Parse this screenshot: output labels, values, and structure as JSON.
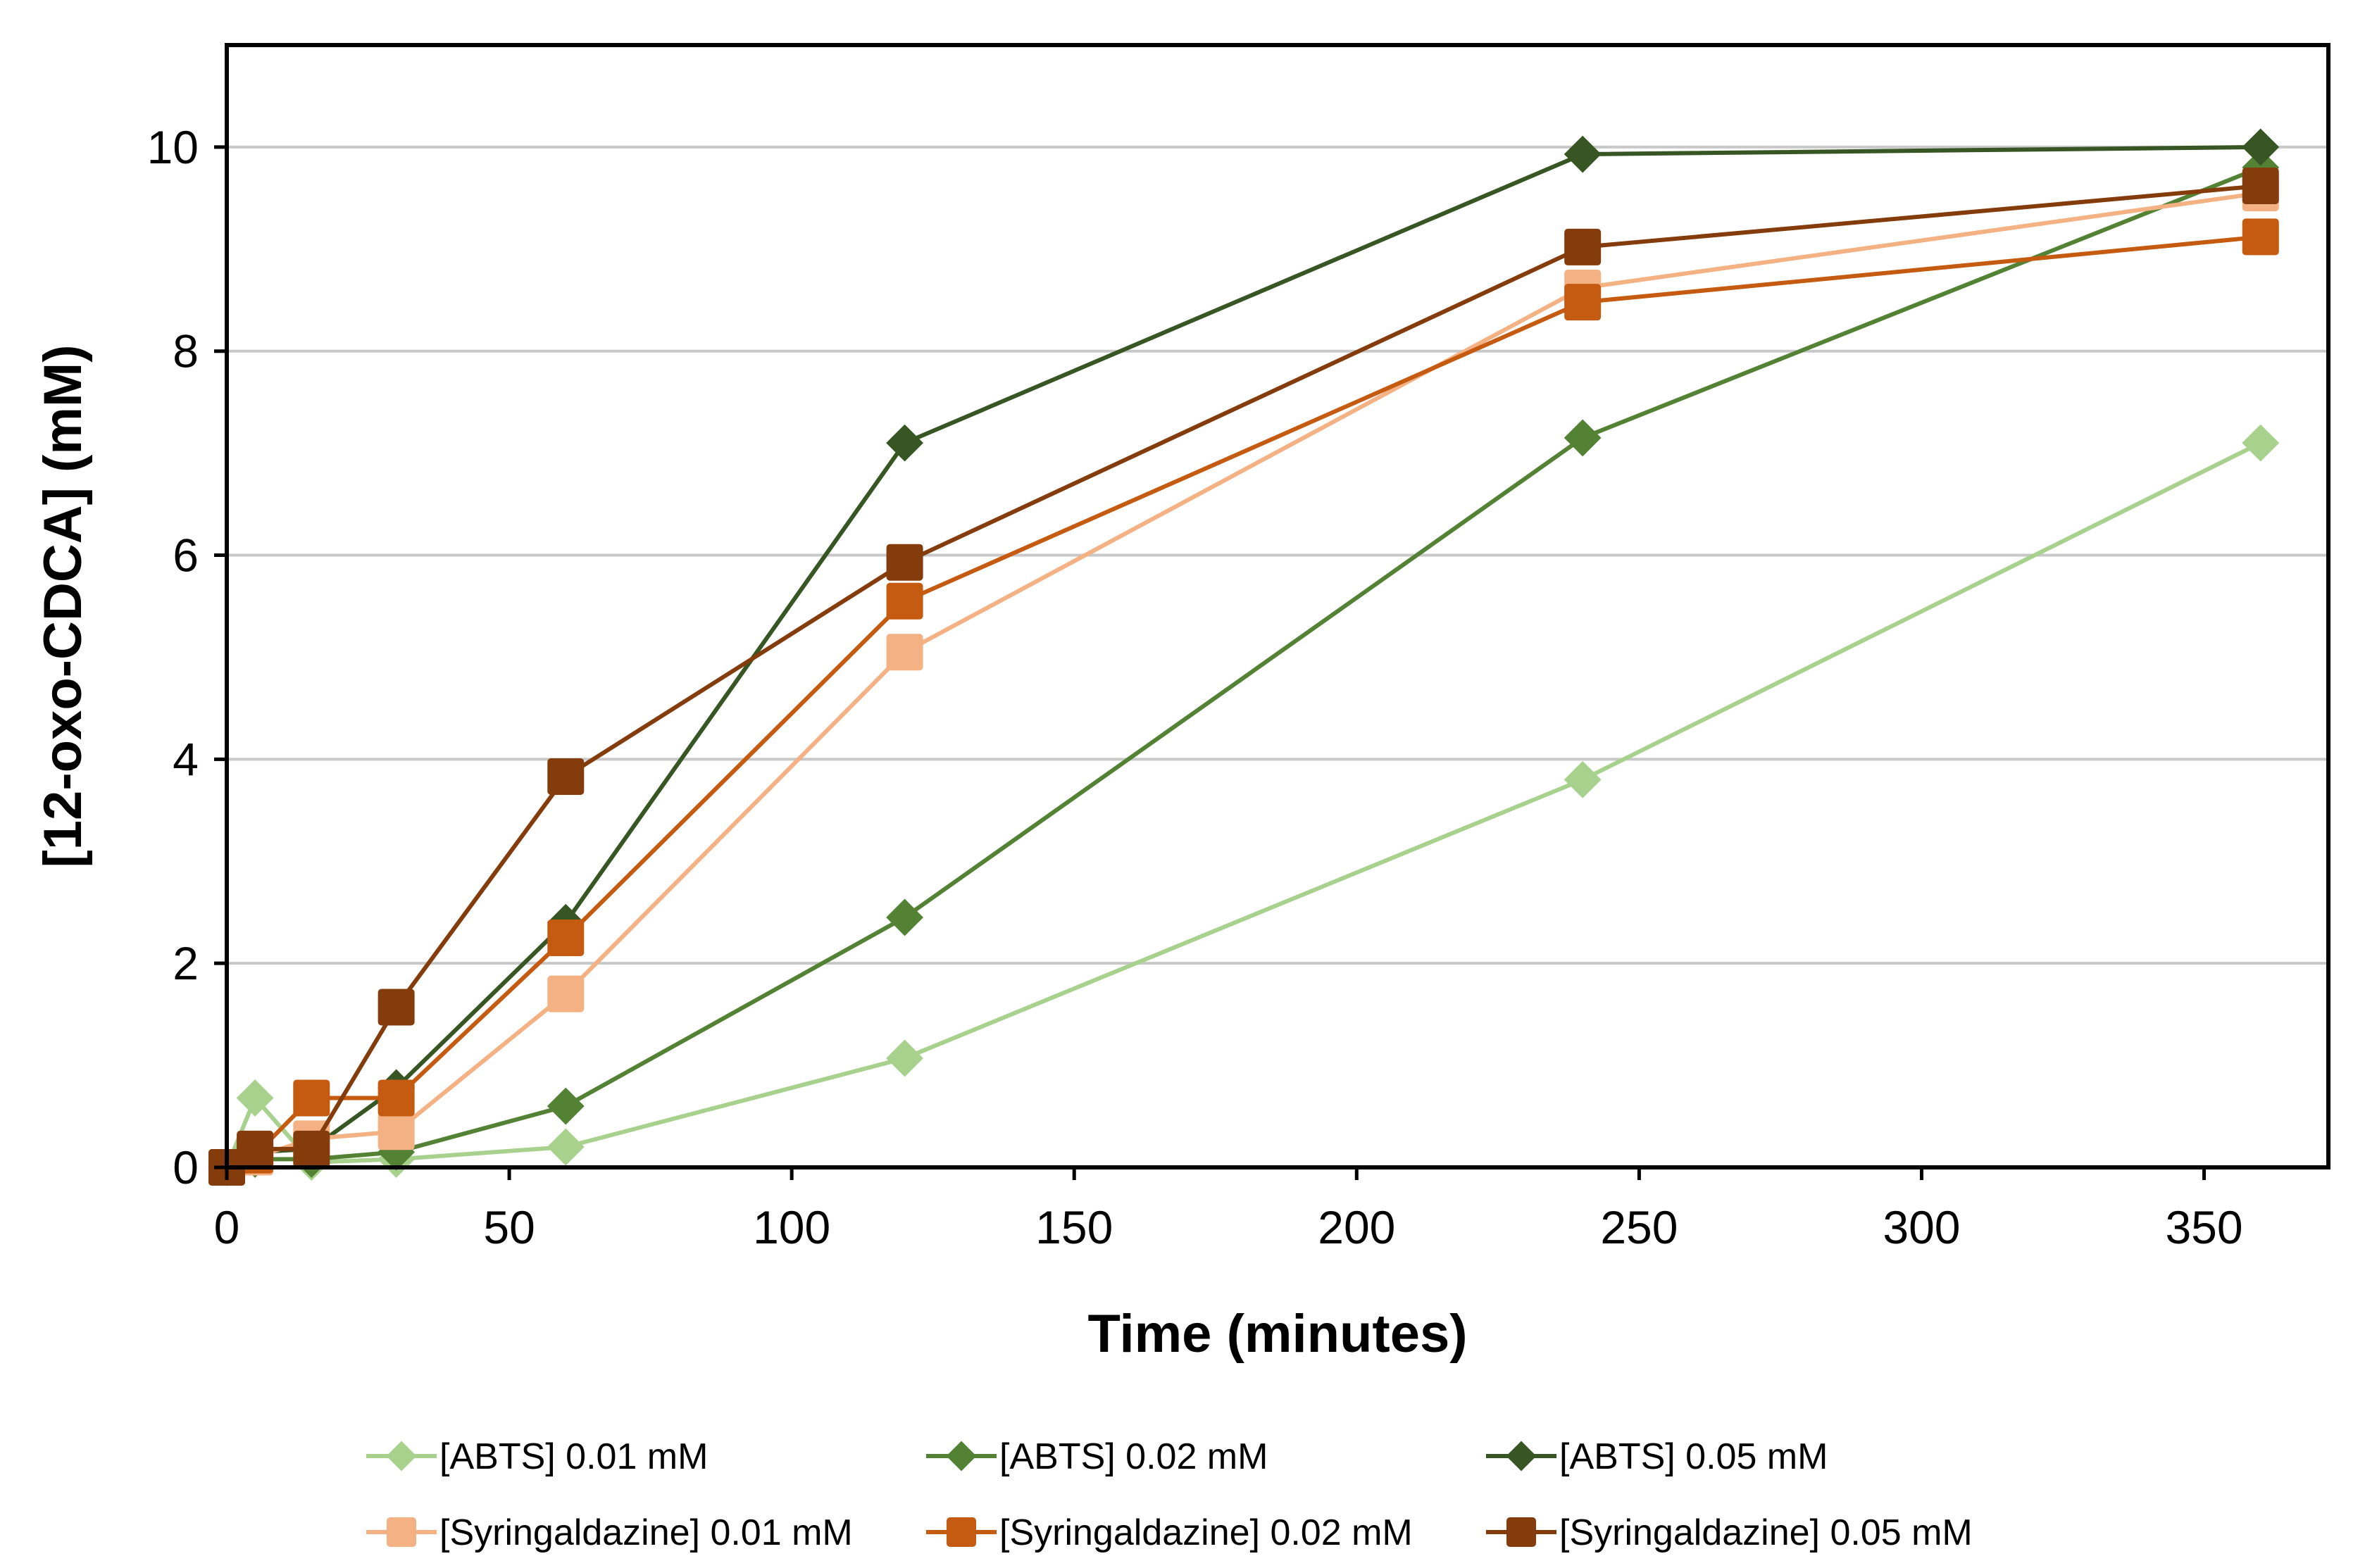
{
  "chart_data": {
    "type": "line",
    "title": "",
    "xlabel": "Time (minutes)",
    "ylabel": "[12-oxo-CDCA] (mM)",
    "xlim": [
      0,
      372
    ],
    "ylim": [
      0,
      11
    ],
    "xticks": [
      0,
      50,
      100,
      150,
      200,
      250,
      300,
      350
    ],
    "yticks": [
      0,
      2,
      4,
      6,
      8,
      10
    ],
    "grid": "horizontal",
    "legend_position": "bottom",
    "x": [
      0,
      5,
      15,
      30,
      60,
      120,
      240,
      360
    ],
    "series": [
      {
        "name": "[ABTS] 0.01 mM",
        "color": "#a9d18e",
        "marker": "diamond",
        "values": [
          0,
          0.68,
          0.05,
          0.08,
          0.2,
          1.07,
          3.8,
          7.1
        ]
      },
      {
        "name": "[ABTS] 0.02 mM",
        "color": "#548235",
        "marker": "diamond",
        "values": [
          0,
          0.08,
          0.08,
          0.15,
          0.6,
          2.45,
          7.15,
          9.8
        ]
      },
      {
        "name": "[ABTS] 0.05 mM",
        "color": "#375623",
        "marker": "diamond",
        "values": [
          0,
          0.15,
          0.18,
          0.78,
          2.4,
          7.1,
          9.93,
          10.0
        ]
      },
      {
        "name": "[Syringaldazine] 0.01 mM",
        "color": "#f4b183",
        "marker": "square",
        "values": [
          0,
          0.1,
          0.28,
          0.35,
          1.7,
          5.05,
          8.62,
          9.55
        ]
      },
      {
        "name": "[Syringaldazine] 0.02 mM",
        "color": "#c55a11",
        "marker": "square",
        "values": [
          0,
          0.12,
          0.68,
          0.68,
          2.25,
          5.55,
          8.48,
          9.12
        ]
      },
      {
        "name": "[Syringaldazine] 0.05 mM",
        "color": "#843c0c",
        "marker": "square",
        "values": [
          0,
          0.18,
          0.18,
          1.57,
          3.83,
          5.93,
          9.02,
          9.62
        ]
      }
    ]
  }
}
